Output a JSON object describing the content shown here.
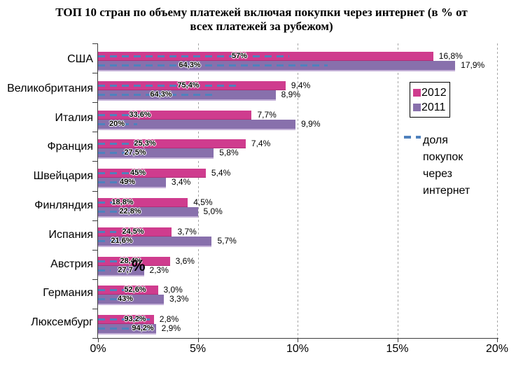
{
  "title": "ТОП 10 стран по объему платежей включая покупки через интернет (в % от всех платежей за рубежом)",
  "title_lines": [
    "ТОП 10 стран по объему платежей включая покупки через интернет (в % от",
    "всех платежей за рубежом)"
  ],
  "axis": {
    "unit_label": "%",
    "x_ticks": [
      "0%",
      "5%",
      "10%",
      "15%",
      "20%"
    ]
  },
  "legend": {
    "line_label": "доля покупок через интернет"
  },
  "colors": {
    "bar_2012": "#CF3C8E",
    "bar_2011": "#8870AC",
    "bar_2011_edge": "#C6B3D9",
    "dash_line": "#4F81BD",
    "grid": "#A6A6A6"
  },
  "chart_data": {
    "type": "bar",
    "orientation": "horizontal",
    "title": "ТОП 10 стран по объему платежей включая покупки через интернет (в % от всех платежей за рубежом)",
    "categories": [
      "США",
      "Великобритания",
      "Италия",
      "Франция",
      "Швейцария",
      "Финляндия",
      "Испания",
      "Австрия",
      "Германия",
      "Люксембург"
    ],
    "series": [
      {
        "name": "2012",
        "color": "#CF3C8E",
        "values": [
          16.8,
          9.4,
          7.7,
          7.4,
          5.4,
          4.5,
          3.7,
          3.6,
          3.0,
          2.8
        ],
        "value_labels": [
          "16,8%",
          "9,4%",
          "7,7%",
          "7,4%",
          "5,4%",
          "4,5%",
          "3,7%",
          "3,6%",
          "3,0%",
          "2,8%"
        ]
      },
      {
        "name": "2011",
        "color": "#8870AC",
        "values": [
          17.9,
          8.9,
          9.9,
          5.8,
          3.4,
          5.0,
          5.7,
          2.3,
          3.3,
          2.9
        ],
        "value_labels": [
          "17,9%",
          "8,9%",
          "9,9%",
          "5,8%",
          "3,4%",
          "5,0%",
          "5,7%",
          "2,3%",
          "3,3%",
          "2,9%"
        ]
      }
    ],
    "internet_share": {
      "name": "доля покупок через интернет",
      "color": "#4F81BD",
      "style": "dashed",
      "series": [
        {
          "name": "2012",
          "values": [
            57,
            75.4,
            33.6,
            25.3,
            45,
            18.8,
            24.5,
            28.4,
            52.6,
            93.2
          ],
          "labels": [
            "57%",
            "75,4%",
            "33,6%",
            "25,3%",
            "45%",
            "18,8%",
            "24,5%",
            "28,4%",
            "52,6%",
            "93,2%"
          ]
        },
        {
          "name": "2011",
          "values": [
            64.3,
            64.3,
            20,
            27.5,
            49,
            22.8,
            21.6,
            27.7,
            43,
            94.2
          ],
          "labels": [
            "64,3%",
            "64,3%",
            "20%",
            "27,5%",
            "49%",
            "22,8%",
            "21,6%",
            "27,7",
            "43%",
            "94,2%"
          ]
        }
      ]
    },
    "xlim": [
      0,
      20
    ],
    "x_tick_labels": [
      "0%",
      "5%",
      "10%",
      "15%",
      "20%"
    ],
    "grid": "vertical-dashed",
    "legend_position": "right"
  }
}
